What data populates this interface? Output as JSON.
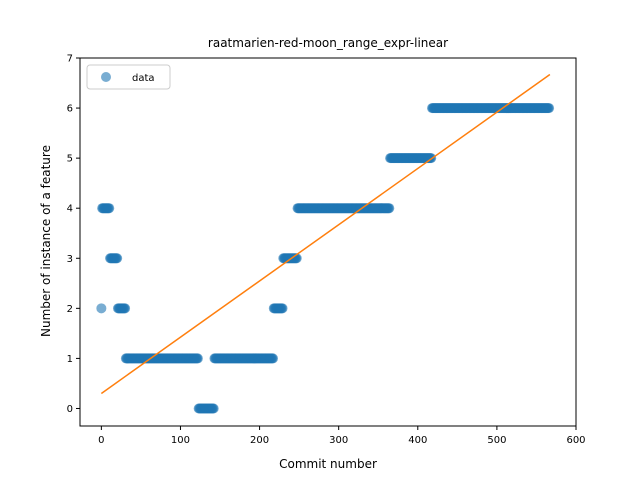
{
  "chart_data": {
    "type": "scatter",
    "title": "raatmarien-red-moon_range_expr-linear",
    "xlabel": "Commit number",
    "ylabel": "Number of instance of a feature",
    "xlim": [
      -27,
      600
    ],
    "ylim": [
      -0.35,
      7
    ],
    "xticks": [
      "0",
      "100",
      "200",
      "300",
      "400",
      "500",
      "600"
    ],
    "yticks": [
      "0",
      "1",
      "2",
      "3",
      "4",
      "5",
      "6",
      "7"
    ],
    "legend": {
      "position": "upper-left",
      "entries": [
        "data"
      ]
    },
    "colors": {
      "data": "#1f77b4",
      "fit": "#ff7f0e"
    },
    "series": [
      {
        "name": "data",
        "kind": "scatter",
        "segments": [
          {
            "x_start": 0,
            "x_end": 1,
            "y": 2
          },
          {
            "x_start": 1,
            "x_end": 11,
            "y": 4
          },
          {
            "x_start": 11,
            "x_end": 21,
            "y": 3
          },
          {
            "x_start": 21,
            "x_end": 31,
            "y": 2
          },
          {
            "x_start": 31,
            "x_end": 123,
            "y": 1
          },
          {
            "x_start": 123,
            "x_end": 143,
            "y": 0
          },
          {
            "x_start": 143,
            "x_end": 218,
            "y": 1
          },
          {
            "x_start": 218,
            "x_end": 230,
            "y": 2
          },
          {
            "x_start": 230,
            "x_end": 248,
            "y": 3
          },
          {
            "x_start": 248,
            "x_end": 365,
            "y": 4
          },
          {
            "x_start": 365,
            "x_end": 418,
            "y": 5
          },
          {
            "x_start": 418,
            "x_end": 567,
            "y": 6
          }
        ]
      },
      {
        "kind": "line",
        "x": [
          0,
          567
        ],
        "y": [
          0.3,
          6.67
        ]
      }
    ]
  }
}
